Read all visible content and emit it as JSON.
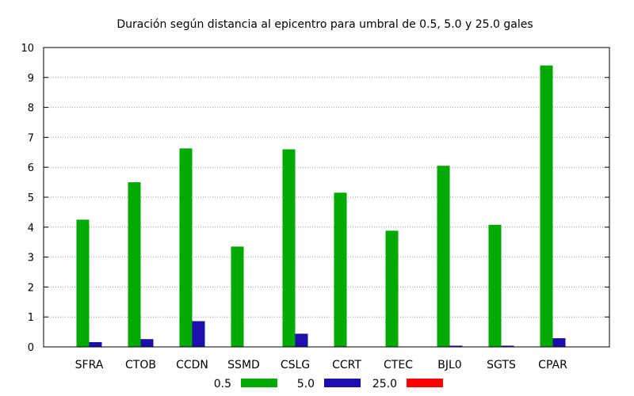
{
  "chart_data": {
    "type": "bar",
    "title": "Duración según distancia al epicentro para umbral de 0.5, 5.0 y 25.0 gales",
    "xlabel": "",
    "ylabel": "",
    "ylim": [
      0,
      10
    ],
    "yticks": [
      "0",
      "1",
      "2",
      "3",
      "4",
      "5",
      "6",
      "7",
      "8",
      "9",
      "10"
    ],
    "grid": "horizontal dotted",
    "legend_position": "bottom",
    "categories": [
      "SFRA",
      "CTOB",
      "CCDN",
      "SSMD",
      "CSLG",
      "CCRT",
      "CTEC",
      "BJL0",
      "SGTS",
      "CPAR"
    ],
    "series": [
      {
        "name": "0.5",
        "color": "#00aa00",
        "values": [
          4.25,
          5.5,
          6.63,
          3.35,
          6.6,
          5.15,
          3.88,
          6.05,
          4.08,
          9.4
        ]
      },
      {
        "name": "5.0",
        "color": "#1c0fad",
        "values": [
          0.16,
          0.26,
          0.86,
          0.0,
          0.44,
          0.0,
          0.0,
          0.04,
          0.04,
          0.29
        ]
      },
      {
        "name": "25.0",
        "color": "#ff0000",
        "values": [
          0,
          0,
          0,
          0,
          0,
          0,
          0,
          0,
          0,
          0
        ]
      }
    ]
  }
}
